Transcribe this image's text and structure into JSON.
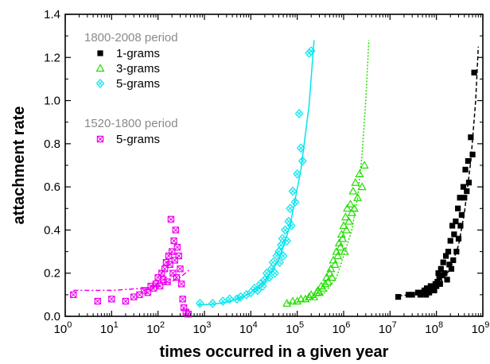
{
  "chart_data": {
    "type": "scatter",
    "x_scale": "log",
    "xlabel": "times occurred in a given year",
    "ylabel": "attachment rate",
    "xlim": [
      1,
      1000000000
    ],
    "ylim": [
      0,
      1.4
    ],
    "x_ticks": [
      1,
      10,
      100,
      1000,
      10000,
      100000,
      1000000,
      10000000,
      100000000,
      1000000000
    ],
    "x_tick_labels": [
      {
        "base": "10",
        "exp": "0"
      },
      {
        "base": "10",
        "exp": "1"
      },
      {
        "base": "10",
        "exp": "2"
      },
      {
        "base": "10",
        "exp": "3"
      },
      {
        "base": "10",
        "exp": "4"
      },
      {
        "base": "10",
        "exp": "5"
      },
      {
        "base": "10",
        "exp": "6"
      },
      {
        "base": "10",
        "exp": "7"
      },
      {
        "base": "10",
        "exp": "8"
      },
      {
        "base": "10",
        "exp": "9"
      }
    ],
    "y_ticks": [
      0,
      0.2,
      0.4,
      0.6,
      0.8,
      1.0,
      1.2,
      1.4
    ],
    "y_tick_labels": [
      "0.0",
      "0.2",
      "0.4",
      "0.6",
      "0.8",
      "1.0",
      "1.2",
      "1.4"
    ],
    "grid": false,
    "legend": {
      "position": "top-left",
      "group1_title": "1800-2008 period",
      "group2_title": "1520-1800 period"
    },
    "series": [
      {
        "name": "1-grams",
        "marker": "filled-square",
        "color": "#000000",
        "fit_style": "dashed",
        "fit": [
          [
            15000000,
            0.095
          ],
          [
            30000000,
            0.1
          ],
          [
            50000000,
            0.11
          ],
          [
            80000000,
            0.125
          ],
          [
            120000000,
            0.155
          ],
          [
            200000000,
            0.22
          ],
          [
            300000000,
            0.33
          ],
          [
            400000000,
            0.48
          ],
          [
            550000000,
            0.72
          ],
          [
            700000000,
            1.0
          ],
          [
            800000000,
            1.25
          ]
        ],
        "points": [
          [
            15000000,
            0.09
          ],
          [
            25000000,
            0.1
          ],
          [
            30000000,
            0.1
          ],
          [
            40000000,
            0.11
          ],
          [
            45000000,
            0.1
          ],
          [
            50000000,
            0.11
          ],
          [
            55000000,
            0.12
          ],
          [
            60000000,
            0.1
          ],
          [
            62000000,
            0.13
          ],
          [
            65000000,
            0.12
          ],
          [
            70000000,
            0.11
          ],
          [
            75000000,
            0.14
          ],
          [
            80000000,
            0.12
          ],
          [
            85000000,
            0.13
          ],
          [
            90000000,
            0.12
          ],
          [
            95000000,
            0.15
          ],
          [
            100000000,
            0.14
          ],
          [
            105000000,
            0.16
          ],
          [
            110000000,
            0.2
          ],
          [
            115000000,
            0.18
          ],
          [
            120000000,
            0.15
          ],
          [
            125000000,
            0.22
          ],
          [
            130000000,
            0.19
          ],
          [
            140000000,
            0.25
          ],
          [
            150000000,
            0.2
          ],
          [
            160000000,
            0.28
          ],
          [
            170000000,
            0.17
          ],
          [
            180000000,
            0.3
          ],
          [
            190000000,
            0.24
          ],
          [
            200000000,
            0.35
          ],
          [
            210000000,
            0.22
          ],
          [
            220000000,
            0.42
          ],
          [
            230000000,
            0.26
          ],
          [
            240000000,
            0.38
          ],
          [
            260000000,
            0.44
          ],
          [
            270000000,
            0.3
          ],
          [
            290000000,
            0.5
          ],
          [
            300000000,
            0.36
          ],
          [
            320000000,
            0.55
          ],
          [
            330000000,
            0.42
          ],
          [
            350000000,
            0.47
          ],
          [
            380000000,
            0.6
          ],
          [
            400000000,
            0.55
          ],
          [
            420000000,
            0.68
          ],
          [
            450000000,
            0.58
          ],
          [
            480000000,
            0.72
          ],
          [
            500000000,
            0.62
          ],
          [
            550000000,
            0.83
          ],
          [
            600000000,
            0.75
          ],
          [
            650000000,
            1.13
          ]
        ]
      },
      {
        "name": "3-grams",
        "marker": "open-triangle",
        "color": "#22dd00",
        "fit_style": "dotted",
        "fit": [
          [
            60000,
            0.062
          ],
          [
            100000,
            0.066
          ],
          [
            200000,
            0.08
          ],
          [
            400000,
            0.11
          ],
          [
            700000,
            0.18
          ],
          [
            1000000,
            0.28
          ],
          [
            1500000,
            0.4
          ],
          [
            2000000,
            0.55
          ],
          [
            2500000,
            0.75
          ],
          [
            3000000,
            1.0
          ],
          [
            3500000,
            1.28
          ]
        ],
        "points": [
          [
            60000,
            0.06
          ],
          [
            80000,
            0.07
          ],
          [
            100000,
            0.07
          ],
          [
            120000,
            0.08
          ],
          [
            150000,
            0.08
          ],
          [
            180000,
            0.09
          ],
          [
            200000,
            0.1
          ],
          [
            230000,
            0.09
          ],
          [
            260000,
            0.11
          ],
          [
            280000,
            0.12
          ],
          [
            300000,
            0.11
          ],
          [
            330000,
            0.14
          ],
          [
            360000,
            0.13
          ],
          [
            400000,
            0.15
          ],
          [
            430000,
            0.18
          ],
          [
            460000,
            0.16
          ],
          [
            500000,
            0.2
          ],
          [
            530000,
            0.22
          ],
          [
            560000,
            0.18
          ],
          [
            600000,
            0.26
          ],
          [
            650000,
            0.24
          ],
          [
            700000,
            0.3
          ],
          [
            750000,
            0.28
          ],
          [
            800000,
            0.34
          ],
          [
            850000,
            0.32
          ],
          [
            900000,
            0.38
          ],
          [
            950000,
            0.36
          ],
          [
            1000000,
            0.42
          ],
          [
            1050000,
            0.3
          ],
          [
            1100000,
            0.46
          ],
          [
            1150000,
            0.4
          ],
          [
            1200000,
            0.5
          ],
          [
            1300000,
            0.44
          ],
          [
            1400000,
            0.52
          ],
          [
            1500000,
            0.48
          ],
          [
            1600000,
            0.58
          ],
          [
            1700000,
            0.5
          ],
          [
            1800000,
            0.62
          ],
          [
            2000000,
            0.55
          ],
          [
            2200000,
            0.66
          ],
          [
            2500000,
            0.6
          ],
          [
            2800000,
            0.7
          ]
        ]
      },
      {
        "name": "5-grams",
        "marker": "open-diamond",
        "color": "#00e5ee",
        "fit_style": "solid",
        "fit": [
          [
            700,
            0.052
          ],
          [
            1500,
            0.056
          ],
          [
            3000,
            0.065
          ],
          [
            6000,
            0.085
          ],
          [
            10000,
            0.11
          ],
          [
            20000,
            0.16
          ],
          [
            40000,
            0.26
          ],
          [
            70000,
            0.42
          ],
          [
            120000,
            0.68
          ],
          [
            180000,
            0.98
          ],
          [
            230000,
            1.28
          ]
        ],
        "points": [
          [
            800,
            0.06
          ],
          [
            1500,
            0.06
          ],
          [
            2500,
            0.07
          ],
          [
            3500,
            0.08
          ],
          [
            5000,
            0.08
          ],
          [
            6000,
            0.09
          ],
          [
            8000,
            0.1
          ],
          [
            10000,
            0.11
          ],
          [
            12000,
            0.13
          ],
          [
            14000,
            0.12
          ],
          [
            16000,
            0.15
          ],
          [
            18000,
            0.14
          ],
          [
            20000,
            0.17
          ],
          [
            22000,
            0.2
          ],
          [
            25000,
            0.18
          ],
          [
            28000,
            0.22
          ],
          [
            30000,
            0.25
          ],
          [
            33000,
            0.2
          ],
          [
            36000,
            0.28
          ],
          [
            40000,
            0.3
          ],
          [
            42000,
            0.25
          ],
          [
            45000,
            0.33
          ],
          [
            48000,
            0.36
          ],
          [
            50000,
            0.28
          ],
          [
            55000,
            0.4
          ],
          [
            60000,
            0.35
          ],
          [
            65000,
            0.44
          ],
          [
            70000,
            0.5
          ],
          [
            75000,
            0.42
          ],
          [
            80000,
            0.58
          ],
          [
            90000,
            0.53
          ],
          [
            100000,
            0.66
          ],
          [
            110000,
            0.94
          ],
          [
            120000,
            0.78
          ],
          [
            130000,
            0.72
          ],
          [
            180000,
            1.22
          ],
          [
            200000,
            1.23
          ]
        ]
      },
      {
        "name": "5-grams",
        "marker": "crossed-square",
        "color": "#ee00ee",
        "fit_style": "dashdot",
        "fit": [
          [
            1.5,
            0.12
          ],
          [
            10,
            0.12
          ],
          [
            50,
            0.13
          ],
          [
            150,
            0.15
          ],
          [
            300,
            0.18
          ],
          [
            500,
            0.22
          ]
        ],
        "points": [
          [
            1.5,
            0.1
          ],
          [
            5,
            0.07
          ],
          [
            10,
            0.08
          ],
          [
            20,
            0.07
          ],
          [
            30,
            0.09
          ],
          [
            40,
            0.1
          ],
          [
            50,
            0.12
          ],
          [
            60,
            0.11
          ],
          [
            70,
            0.14
          ],
          [
            80,
            0.13
          ],
          [
            90,
            0.15
          ],
          [
            100,
            0.18
          ],
          [
            110,
            0.14
          ],
          [
            120,
            0.2
          ],
          [
            130,
            0.17
          ],
          [
            140,
            0.22
          ],
          [
            150,
            0.25
          ],
          [
            160,
            0.16
          ],
          [
            170,
            0.28
          ],
          [
            180,
            0.24
          ],
          [
            190,
            0.45
          ],
          [
            200,
            0.3
          ],
          [
            210,
            0.2
          ],
          [
            220,
            0.35
          ],
          [
            230,
            0.26
          ],
          [
            240,
            0.4
          ],
          [
            250,
            0.18
          ],
          [
            260,
            0.32
          ],
          [
            280,
            0.28
          ],
          [
            300,
            0.22
          ],
          [
            320,
            0.15
          ],
          [
            340,
            0.08
          ],
          [
            360,
            0.04
          ],
          [
            400,
            0.02
          ],
          [
            450,
            0.01
          ]
        ]
      }
    ]
  }
}
